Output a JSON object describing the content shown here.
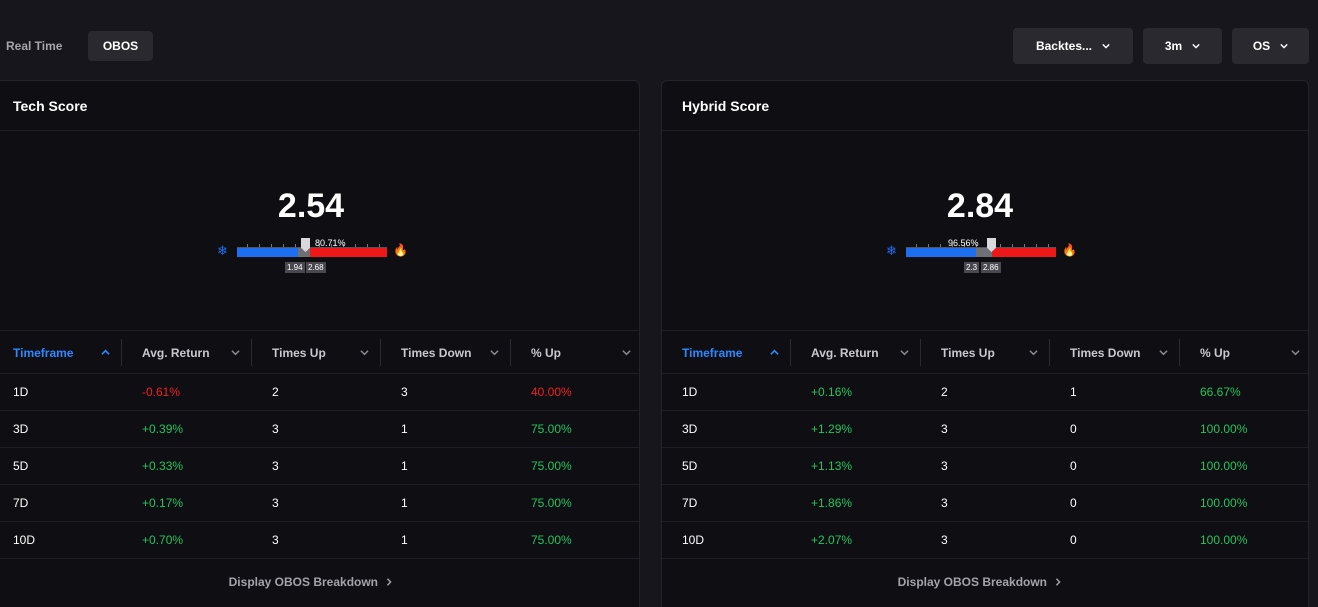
{
  "topbar": {
    "mode_label": "Real Time",
    "mode_button": "OBOS",
    "dropdowns": [
      "Backtes...",
      "3m",
      "OS"
    ]
  },
  "colors": {
    "accent": "#2b88ff",
    "positive": "#22c55e",
    "negative": "#ee2222",
    "cold": "#1e6ff0",
    "hot": "#ee1818"
  },
  "table_headers": [
    "Timeframe",
    "Avg. Return",
    "Times Up",
    "Times Down",
    "% Up"
  ],
  "panels": [
    {
      "title": "Tech Score",
      "score": "2.54",
      "gauge": {
        "percent_label": "80.71%",
        "low_label": "1.94",
        "high_label": "2.68",
        "cold_icon": "snowflake-icon",
        "hot_icon": "fire-icon"
      },
      "rows": [
        {
          "timeframe": "1D",
          "avg_return": "-0.61%",
          "times_up": "2",
          "times_down": "3",
          "pct_up": "40.00%",
          "sign": "neg"
        },
        {
          "timeframe": "3D",
          "avg_return": "+0.39%",
          "times_up": "3",
          "times_down": "1",
          "pct_up": "75.00%",
          "sign": "pos"
        },
        {
          "timeframe": "5D",
          "avg_return": "+0.33%",
          "times_up": "3",
          "times_down": "1",
          "pct_up": "75.00%",
          "sign": "pos"
        },
        {
          "timeframe": "7D",
          "avg_return": "+0.17%",
          "times_up": "3",
          "times_down": "1",
          "pct_up": "75.00%",
          "sign": "pos"
        },
        {
          "timeframe": "10D",
          "avg_return": "+0.70%",
          "times_up": "3",
          "times_down": "1",
          "pct_up": "75.00%",
          "sign": "pos"
        }
      ],
      "footer_link": "Display OBOS Breakdown"
    },
    {
      "title": "Hybrid Score",
      "score": "2.84",
      "gauge": {
        "percent_label": "96.56%",
        "low_label": "2.3",
        "high_label": "2.86",
        "cold_icon": "snowflake-icon",
        "hot_icon": "fire-icon"
      },
      "rows": [
        {
          "timeframe": "1D",
          "avg_return": "+0.16%",
          "times_up": "2",
          "times_down": "1",
          "pct_up": "66.67%",
          "sign": "pos"
        },
        {
          "timeframe": "3D",
          "avg_return": "+1.29%",
          "times_up": "3",
          "times_down": "0",
          "pct_up": "100.00%",
          "sign": "pos"
        },
        {
          "timeframe": "5D",
          "avg_return": "+1.13%",
          "times_up": "3",
          "times_down": "0",
          "pct_up": "100.00%",
          "sign": "pos"
        },
        {
          "timeframe": "7D",
          "avg_return": "+1.86%",
          "times_up": "3",
          "times_down": "0",
          "pct_up": "100.00%",
          "sign": "pos"
        },
        {
          "timeframe": "10D",
          "avg_return": "+2.07%",
          "times_up": "3",
          "times_down": "0",
          "pct_up": "100.00%",
          "sign": "pos"
        }
      ],
      "footer_link": "Display OBOS Breakdown"
    }
  ]
}
